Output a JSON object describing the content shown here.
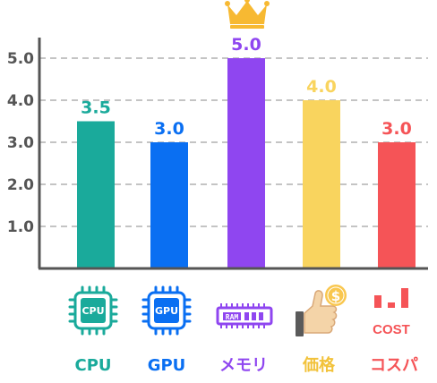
{
  "chart_data": {
    "type": "bar",
    "categories": [
      "CPU",
      "GPU",
      "メモリ",
      "価格",
      "コスパ"
    ],
    "values": [
      3.5,
      3.0,
      5.0,
      4.0,
      3.0
    ],
    "value_labels": [
      "3.5",
      "3.0",
      "5.0",
      "4.0",
      "3.0"
    ],
    "colors": [
      "#1aaa9b",
      "#0a6ff2",
      "#8f46f0",
      "#f9d45e",
      "#f55457"
    ],
    "yticks": [
      "1.0",
      "2.0",
      "3.0",
      "4.0",
      "5.0"
    ],
    "ylim": [
      0,
      5.5
    ],
    "grid": true,
    "grid_style": "dashed",
    "icons": [
      "cpu-chip-icon",
      "gpu-chip-icon",
      "ram-module-icon",
      "thumbs-up-coin-icon",
      "cost-bar-icon"
    ],
    "icon_texts": {
      "cpu": "CPU",
      "gpu": "GPU",
      "ram": "RAM",
      "coin": "$",
      "cost": "COST"
    },
    "highlight": {
      "category": "メモリ",
      "icon": "crown-icon"
    }
  }
}
